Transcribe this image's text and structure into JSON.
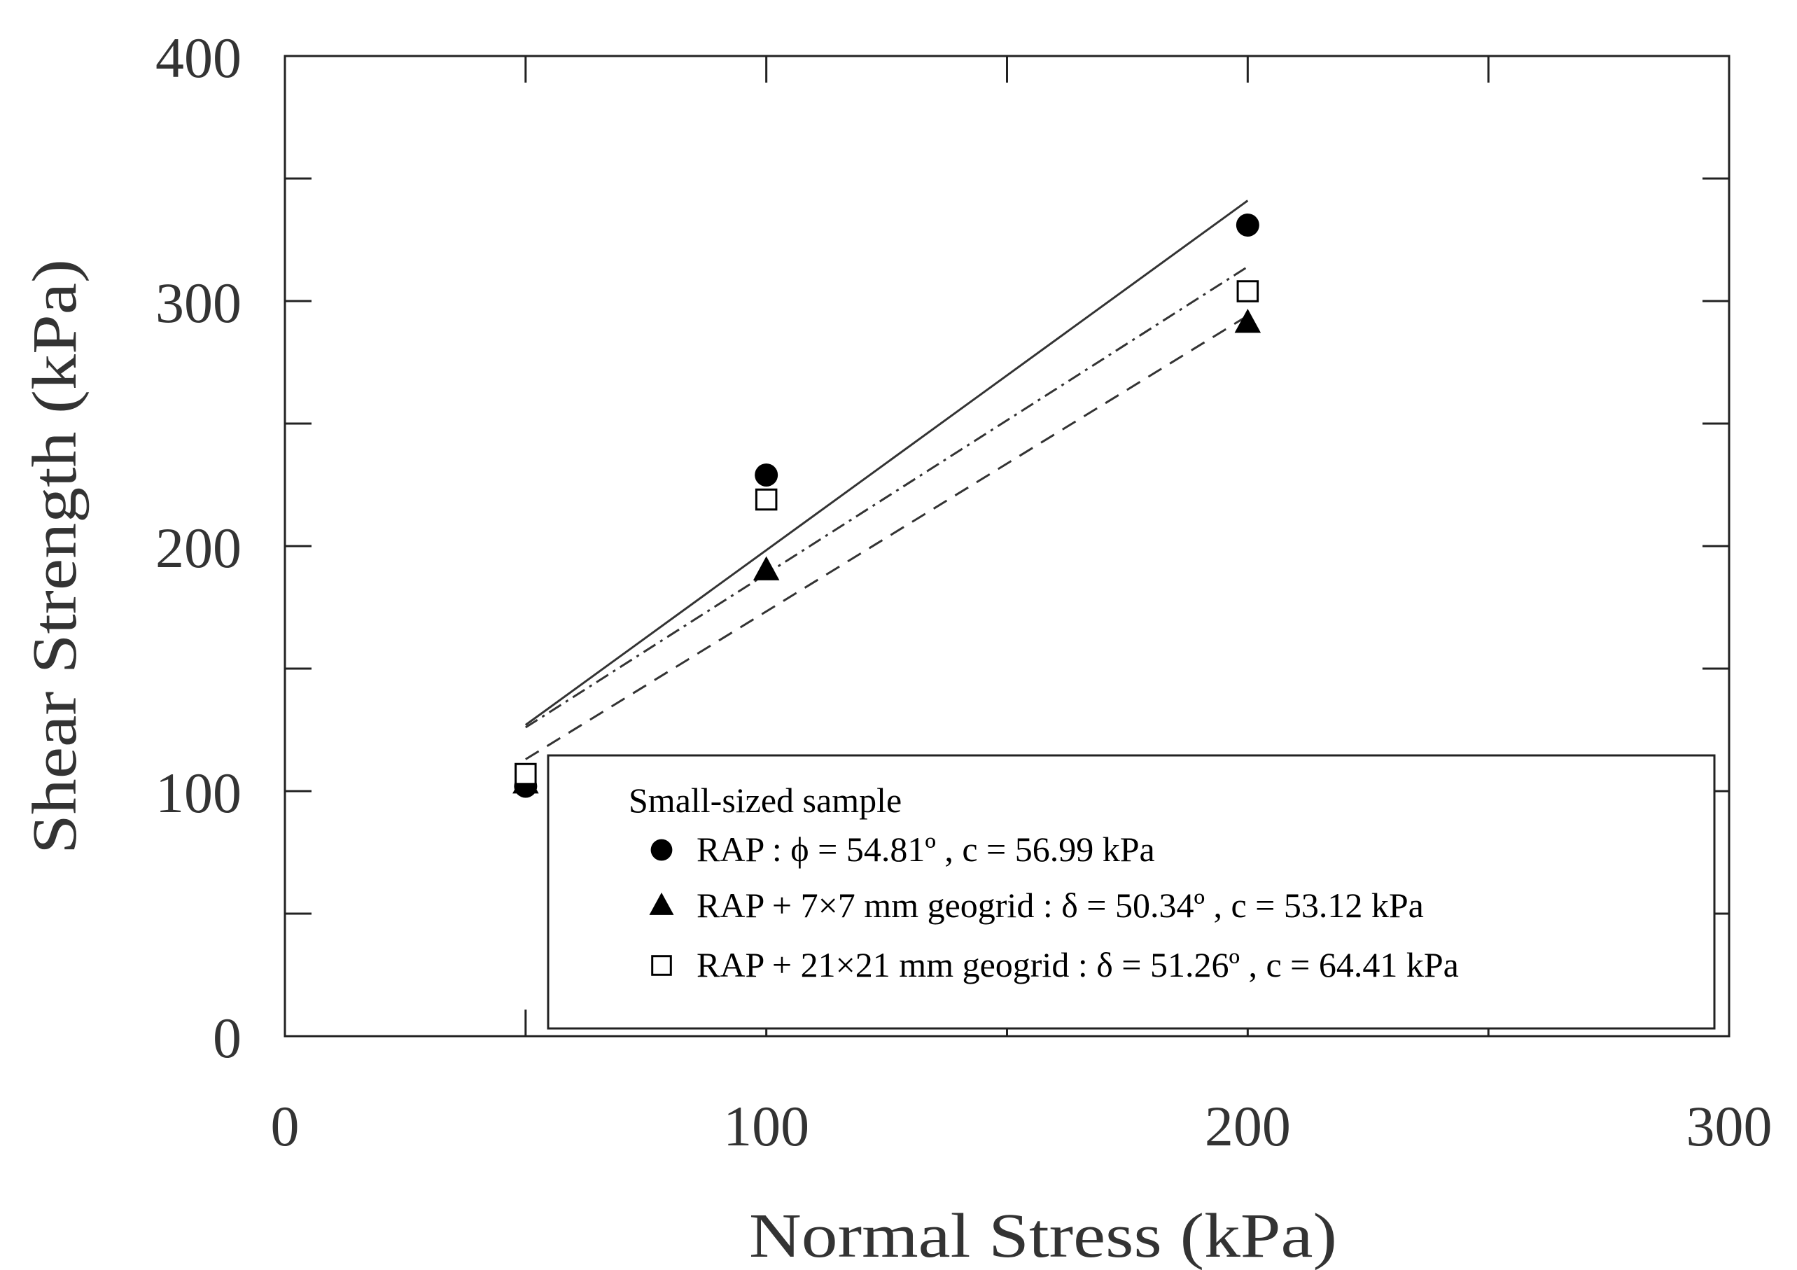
{
  "chart_data": {
    "type": "scatter",
    "title": "",
    "xlabel": "Normal Stress (kPa)",
    "ylabel": "Shear Strength (kPa)",
    "xlim": [
      0,
      300
    ],
    "ylim": [
      0,
      400
    ],
    "x_ticks": [
      0,
      100,
      200,
      300
    ],
    "y_ticks": [
      0,
      100,
      200,
      300,
      400
    ],
    "x_tick_labels": [
      "0",
      "100",
      "200",
      "300"
    ],
    "y_tick_labels": [
      "0",
      "100",
      "200",
      "300",
      "400"
    ],
    "grid": false,
    "legend": {
      "position": "bottom-right",
      "title": "Small-sized sample"
    },
    "series": [
      {
        "name": "RAP : ϕ = 54.81º , c = 56.99 kPa",
        "marker": "filled-circle",
        "line_style": "solid",
        "x": [
          50,
          100,
          200
        ],
        "y": [
          102,
          229,
          331
        ],
        "fit_line": {
          "x": [
            50,
            200
          ],
          "y": [
            127,
            341
          ]
        }
      },
      {
        "name": "RAP + 7×7 mm geogrid : δ = 50.34º , c = 53.12 kPa",
        "marker": "filled-triangle",
        "line_style": "dashed",
        "x": [
          50,
          100,
          200
        ],
        "y": [
          103,
          190,
          291
        ],
        "fit_line": {
          "x": [
            50,
            200
          ],
          "y": [
            113,
            294
          ]
        }
      },
      {
        "name": "RAP + 21×21 mm geogrid : δ = 51.26º , c = 64.41 kPa",
        "marker": "open-square",
        "line_style": "dash-dot",
        "x": [
          50,
          100,
          200
        ],
        "y": [
          107,
          219,
          304
        ],
        "fit_line": {
          "x": [
            50,
            200
          ],
          "y": [
            126,
            314
          ]
        }
      }
    ]
  }
}
